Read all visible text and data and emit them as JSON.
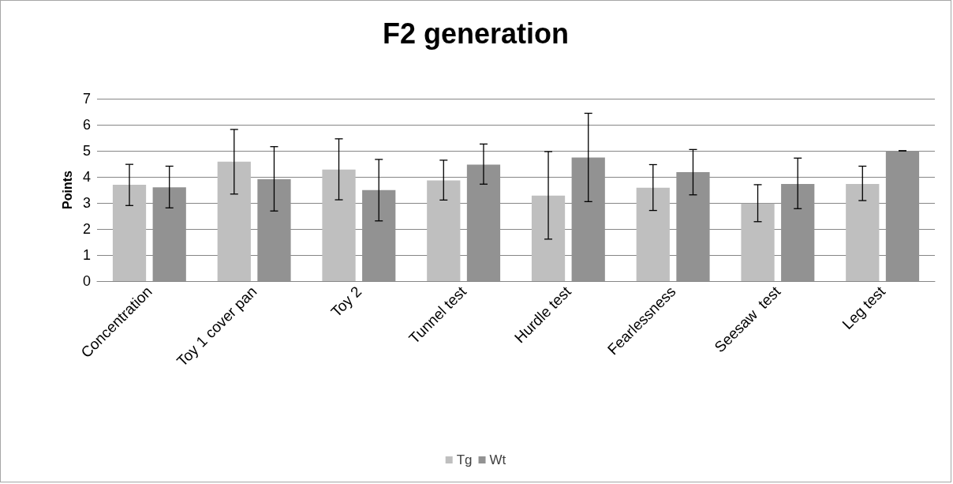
{
  "chart_data": {
    "type": "bar",
    "title": "F2 generation",
    "ylabel": "Points",
    "categories": [
      "Concentration",
      "Toy 1 cover pan",
      "Toy 2",
      "Tunnel test",
      "Hurdle test",
      "Fearlessness",
      "Seesaw  test",
      "Leg test"
    ],
    "series": [
      {
        "name": "Tg",
        "color": "#bfbfbf",
        "values": [
          3.7,
          4.58,
          4.28,
          3.86,
          3.28,
          3.58,
          2.98,
          3.73
        ],
        "errors": [
          [
            2.9,
            4.48
          ],
          [
            3.34,
            5.82
          ],
          [
            3.12,
            5.46
          ],
          [
            3.11,
            4.64
          ],
          [
            1.61,
            4.97
          ],
          [
            2.71,
            4.47
          ],
          [
            2.28,
            3.7
          ],
          [
            3.09,
            4.41
          ]
        ]
      },
      {
        "name": "Wt",
        "color": "#929292",
        "values": [
          3.6,
          3.91,
          3.49,
          4.47,
          4.74,
          4.18,
          3.73,
          5.0
        ],
        "errors": [
          [
            2.81,
            4.41
          ],
          [
            2.69,
            5.16
          ],
          [
            2.31,
            4.67
          ],
          [
            3.72,
            5.26
          ],
          [
            3.05,
            6.44
          ],
          [
            3.31,
            5.05
          ],
          [
            2.78,
            4.72
          ],
          [
            5.0,
            5.0
          ]
        ]
      }
    ],
    "ylim": [
      0,
      7
    ],
    "yticks": [
      0,
      1,
      2,
      3,
      4,
      5,
      6,
      7
    ],
    "grid": "y",
    "legend": "bottom"
  }
}
